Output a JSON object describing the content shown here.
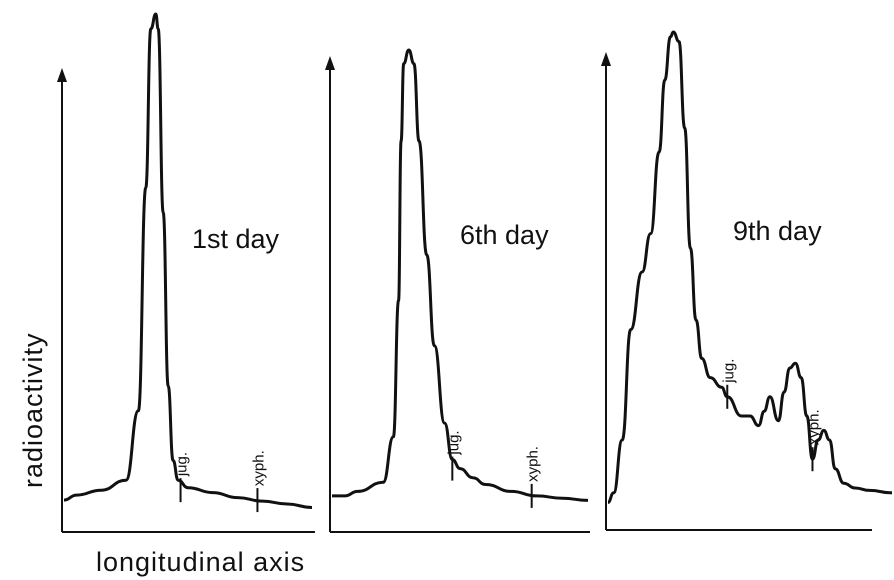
{
  "chart_data": {
    "type": "line",
    "ylabel": "radioactivity",
    "xlabel": "longitudinal axis",
    "panels": [
      {
        "title": "1st day",
        "markers": [
          {
            "label": "jug.",
            "x": 0.47,
            "y": 0.04
          },
          {
            "label": "xyph.",
            "x": 0.78,
            "y": 0.02
          }
        ],
        "series": [
          {
            "x": [
              0,
              0.05,
              0.15,
              0.25,
              0.3,
              0.33,
              0.35,
              0.37,
              0.38,
              0.4,
              0.42,
              0.44,
              0.46,
              0.5,
              0.6,
              0.7,
              0.8,
              0.9,
              1.0
            ],
            "y": [
              0.02,
              0.03,
              0.04,
              0.06,
              0.2,
              0.65,
              0.97,
              1.0,
              0.97,
              0.6,
              0.25,
              0.1,
              0.06,
              0.045,
              0.035,
              0.025,
              0.018,
              0.012,
              0.005
            ]
          }
        ]
      },
      {
        "title": "6th day",
        "markers": [
          {
            "label": "jug.",
            "x": 0.47,
            "y": 0.08
          },
          {
            "label": "xyph.",
            "x": 0.78,
            "y": 0.02
          }
        ],
        "series": [
          {
            "x": [
              0,
              0.05,
              0.1,
              0.2,
              0.24,
              0.26,
              0.27,
              0.28,
              0.3,
              0.32,
              0.34,
              0.37,
              0.4,
              0.44,
              0.47,
              0.5,
              0.55,
              0.6,
              0.7,
              0.8,
              0.9,
              1.0
            ],
            "y": [
              0.02,
              0.02,
              0.03,
              0.05,
              0.15,
              0.45,
              0.8,
              0.97,
              1.0,
              0.97,
              0.8,
              0.55,
              0.35,
              0.18,
              0.1,
              0.08,
              0.06,
              0.045,
              0.03,
              0.02,
              0.015,
              0.01
            ]
          }
        ]
      },
      {
        "title": "9th day",
        "markers": [
          {
            "label": "jug.",
            "x": 0.42,
            "y": 0.24
          },
          {
            "label": "xyph.",
            "x": 0.72,
            "y": 0.11
          }
        ],
        "series": [
          {
            "x": [
              0,
              0.02,
              0.05,
              0.08,
              0.12,
              0.15,
              0.18,
              0.2,
              0.22,
              0.23,
              0.25,
              0.27,
              0.29,
              0.31,
              0.33,
              0.36,
              0.4,
              0.42,
              0.47,
              0.5,
              0.53,
              0.55,
              0.57,
              0.6,
              0.62,
              0.64,
              0.66,
              0.68,
              0.7,
              0.72,
              0.74,
              0.76,
              0.78,
              0.8,
              0.83,
              0.87,
              0.92,
              1.0
            ],
            "y": [
              0.02,
              0.04,
              0.15,
              0.38,
              0.5,
              0.58,
              0.75,
              0.9,
              0.99,
              1.0,
              0.98,
              0.8,
              0.55,
              0.4,
              0.32,
              0.28,
              0.26,
              0.24,
              0.2,
              0.2,
              0.18,
              0.21,
              0.24,
              0.19,
              0.25,
              0.3,
              0.31,
              0.28,
              0.2,
              0.11,
              0.15,
              0.17,
              0.15,
              0.09,
              0.06,
              0.05,
              0.045,
              0.04
            ]
          }
        ]
      }
    ]
  }
}
